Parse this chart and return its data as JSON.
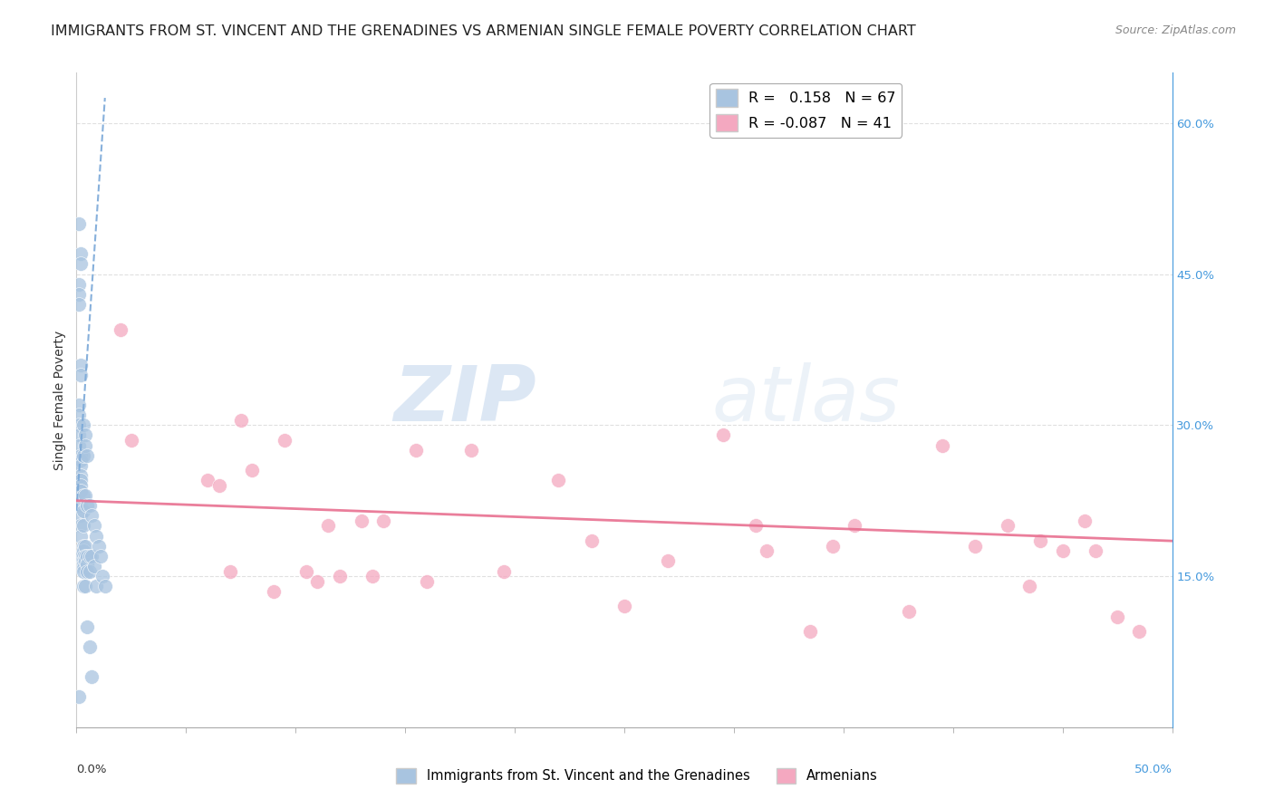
{
  "title": "IMMIGRANTS FROM ST. VINCENT AND THE GRENADINES VS ARMENIAN SINGLE FEMALE POVERTY CORRELATION CHART",
  "source": "Source: ZipAtlas.com",
  "ylabel": "Single Female Poverty",
  "watermark_zip": "ZIP",
  "watermark_atlas": "atlas",
  "xlim": [
    0.0,
    0.5
  ],
  "ylim": [
    0.0,
    0.65
  ],
  "xtick_left_label": "0.0%",
  "xtick_right_label": "50.0%",
  "yticks_right": [
    0.15,
    0.3,
    0.45,
    0.6
  ],
  "ytick_labels_right": [
    "15.0%",
    "30.0%",
    "45.0%",
    "60.0%"
  ],
  "legend1_label": "R =   0.158   N = 67",
  "legend2_label": "R = -0.087   N = 41",
  "legend1_color": "#a8c4e0",
  "legend2_color": "#f4a8c0",
  "series1_color": "#a8c4e0",
  "series2_color": "#f4a8c0",
  "trendline1_color": "#7aa8d8",
  "trendline2_color": "#e87090",
  "background_color": "#ffffff",
  "grid_color": "#dddddd",
  "title_fontsize": 11.5,
  "axis_label_fontsize": 10,
  "tick_fontsize": 9.5,
  "blue_dots_x": [
    0.001,
    0.001,
    0.001,
    0.001,
    0.001,
    0.001,
    0.001,
    0.001,
    0.001,
    0.001,
    0.002,
    0.002,
    0.002,
    0.002,
    0.002,
    0.002,
    0.002,
    0.002,
    0.002,
    0.002,
    0.002,
    0.002,
    0.002,
    0.002,
    0.002,
    0.002,
    0.003,
    0.003,
    0.003,
    0.003,
    0.003,
    0.003,
    0.003,
    0.003,
    0.003,
    0.003,
    0.003,
    0.003,
    0.003,
    0.004,
    0.004,
    0.004,
    0.004,
    0.004,
    0.004,
    0.004,
    0.005,
    0.005,
    0.005,
    0.005,
    0.005,
    0.005,
    0.006,
    0.006,
    0.006,
    0.006,
    0.007,
    0.007,
    0.007,
    0.008,
    0.008,
    0.009,
    0.009,
    0.01,
    0.011,
    0.012,
    0.013
  ],
  "blue_dots_y": [
    0.5,
    0.44,
    0.43,
    0.42,
    0.32,
    0.31,
    0.3,
    0.29,
    0.28,
    0.03,
    0.47,
    0.46,
    0.36,
    0.35,
    0.27,
    0.265,
    0.26,
    0.25,
    0.245,
    0.24,
    0.235,
    0.22,
    0.21,
    0.2,
    0.19,
    0.17,
    0.3,
    0.27,
    0.23,
    0.215,
    0.2,
    0.18,
    0.175,
    0.17,
    0.165,
    0.162,
    0.158,
    0.155,
    0.14,
    0.29,
    0.28,
    0.23,
    0.18,
    0.17,
    0.165,
    0.14,
    0.27,
    0.22,
    0.17,
    0.162,
    0.155,
    0.1,
    0.22,
    0.17,
    0.155,
    0.08,
    0.21,
    0.17,
    0.05,
    0.2,
    0.16,
    0.19,
    0.14,
    0.18,
    0.17,
    0.15,
    0.14
  ],
  "pink_dots_x": [
    0.02,
    0.025,
    0.06,
    0.065,
    0.07,
    0.075,
    0.08,
    0.09,
    0.095,
    0.105,
    0.11,
    0.115,
    0.12,
    0.13,
    0.135,
    0.14,
    0.155,
    0.16,
    0.18,
    0.195,
    0.22,
    0.235,
    0.25,
    0.27,
    0.295,
    0.31,
    0.315,
    0.335,
    0.345,
    0.355,
    0.38,
    0.395,
    0.41,
    0.425,
    0.435,
    0.44,
    0.45,
    0.46,
    0.465,
    0.475,
    0.485
  ],
  "pink_dots_y": [
    0.395,
    0.285,
    0.245,
    0.24,
    0.155,
    0.305,
    0.255,
    0.135,
    0.285,
    0.155,
    0.145,
    0.2,
    0.15,
    0.205,
    0.15,
    0.205,
    0.275,
    0.145,
    0.275,
    0.155,
    0.245,
    0.185,
    0.12,
    0.165,
    0.29,
    0.2,
    0.175,
    0.095,
    0.18,
    0.2,
    0.115,
    0.28,
    0.18,
    0.2,
    0.14,
    0.185,
    0.175,
    0.205,
    0.175,
    0.11,
    0.095
  ],
  "trendline1_x": [
    0.0,
    0.013
  ],
  "trendline1_y": [
    0.215,
    0.625
  ],
  "trendline2_x": [
    0.0,
    0.5
  ],
  "trendline2_y": [
    0.225,
    0.185
  ]
}
